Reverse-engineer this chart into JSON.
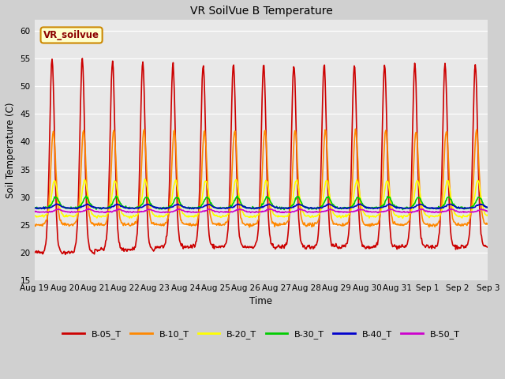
{
  "title": "VR SoilVue B Temperature",
  "xlabel": "Time",
  "ylabel": "Soil Temperature (C)",
  "ylim": [
    15,
    62
  ],
  "yticks": [
    15,
    20,
    25,
    30,
    35,
    40,
    45,
    50,
    55,
    60
  ],
  "fig_bg": "#d0d0d0",
  "plot_bg": "#e8e8e8",
  "series_names": [
    "B-05_T",
    "B-10_T",
    "B-20_T",
    "B-30_T",
    "B-40_T",
    "B-50_T"
  ],
  "series_colors": [
    "#cc0000",
    "#ff8800",
    "#ffff00",
    "#00cc00",
    "#0000cc",
    "#cc00cc"
  ],
  "series_lw": [
    1.2,
    1.2,
    1.2,
    1.2,
    1.2,
    1.2
  ],
  "annotation_text": "VR_soilvue",
  "annotation_facecolor": "#ffffcc",
  "annotation_edgecolor": "#cc8800",
  "n_days": 15,
  "x_tick_labels": [
    "Aug 19",
    "Aug 20",
    "Aug 21",
    "Aug 22",
    "Aug 23",
    "Aug 24",
    "Aug 25",
    "Aug 26",
    "Aug 27",
    "Aug 28",
    "Aug 29",
    "Aug 30",
    "Aug 31",
    "Sep 1",
    "Sep 2",
    "Sep 3"
  ],
  "figsize": [
    6.4,
    4.8
  ],
  "dpi": 100
}
